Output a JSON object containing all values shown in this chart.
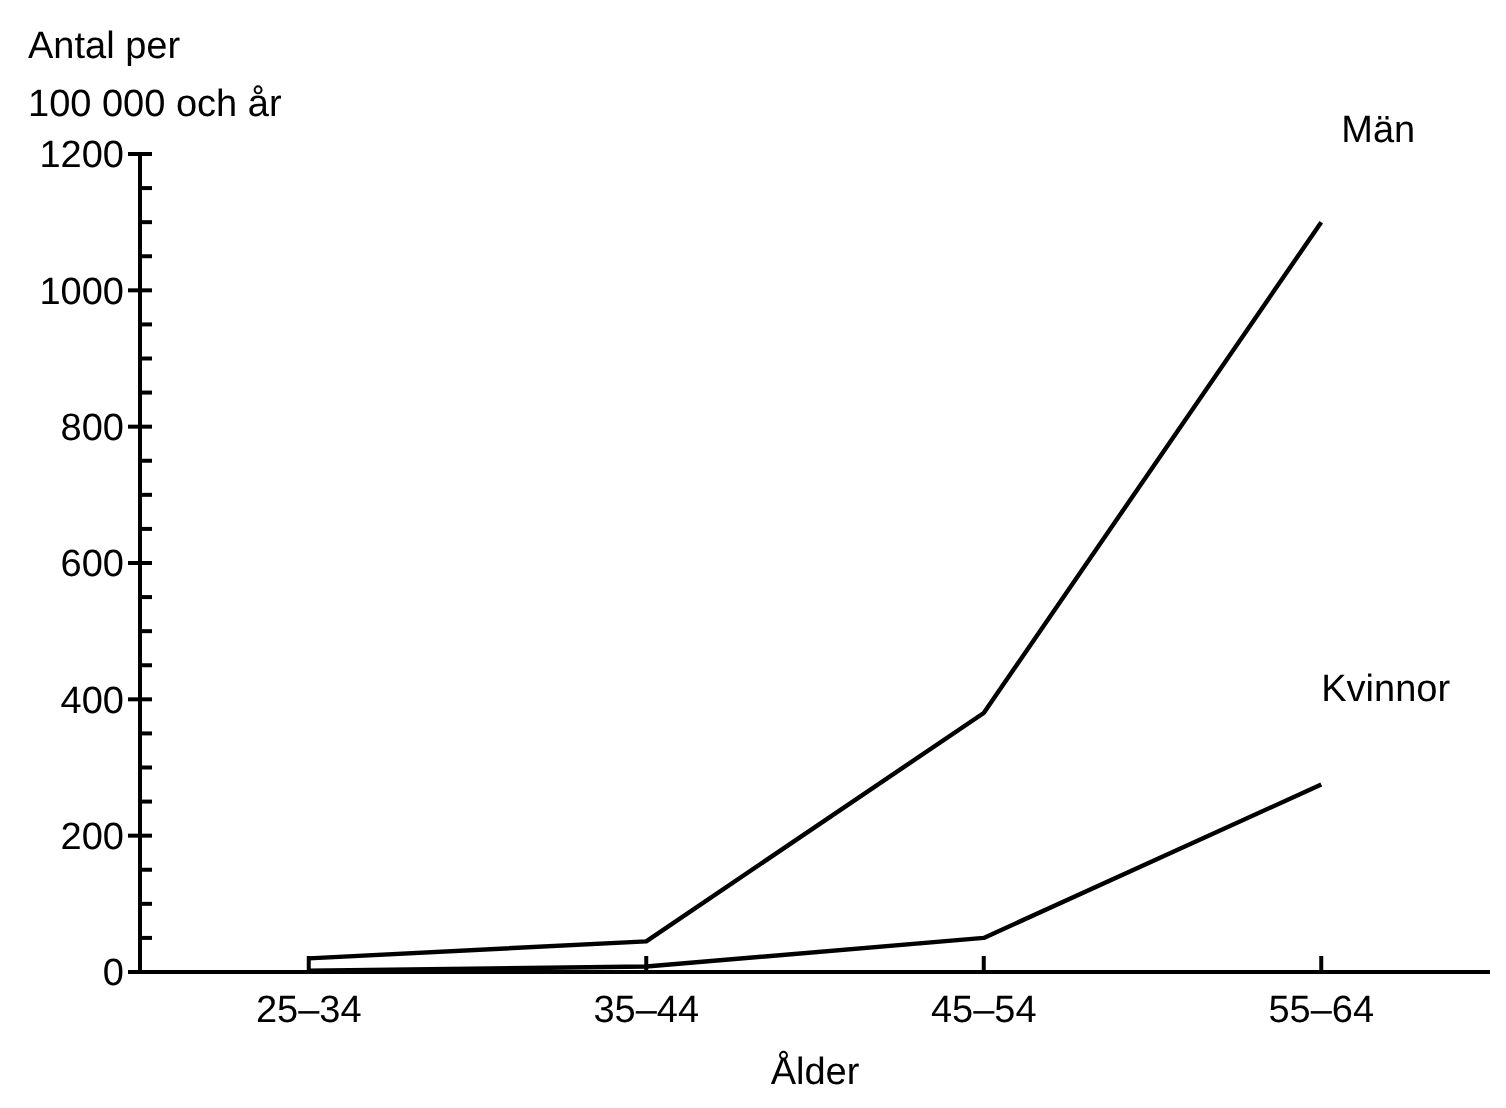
{
  "chart_data": {
    "type": "line",
    "ylabel": "Antal per\n100 000 och år",
    "xlabel": "Ålder",
    "categories": [
      "25–34",
      "35–44",
      "45–54",
      "55–64"
    ],
    "series": [
      {
        "name": "Män",
        "color": "#000000",
        "values": [
          20,
          45,
          380,
          1100
        ]
      },
      {
        "name": "Kvinnor",
        "color": "#000000",
        "values": [
          2,
          8,
          50,
          275
        ]
      }
    ],
    "ylim": [
      0,
      1200
    ],
    "yticks": [
      0,
      {
        "value": 50,
        "label": null
      },
      {
        "value": 100,
        "label": null
      },
      {
        "value": 150,
        "label": null
      },
      200,
      {
        "value": 250,
        "label": null
      },
      {
        "value": 300,
        "label": null
      },
      {
        "value": 350,
        "label": null
      },
      400,
      {
        "value": 450,
        "label": null
      },
      {
        "value": 500,
        "label": null
      },
      {
        "value": 550,
        "label": null
      },
      600,
      {
        "value": 650,
        "label": null
      },
      {
        "value": 700,
        "label": null
      },
      {
        "value": 750,
        "label": null
      },
      800,
      {
        "value": 850,
        "label": null
      },
      {
        "value": 900,
        "label": null
      },
      {
        "value": 950,
        "label": null
      },
      1000,
      {
        "value": 1050,
        "label": null
      },
      {
        "value": 1100,
        "label": null
      },
      {
        "value": 1150,
        "label": null
      },
      1200
    ],
    "grid": false,
    "marker": "none",
    "line_style": "solid"
  }
}
